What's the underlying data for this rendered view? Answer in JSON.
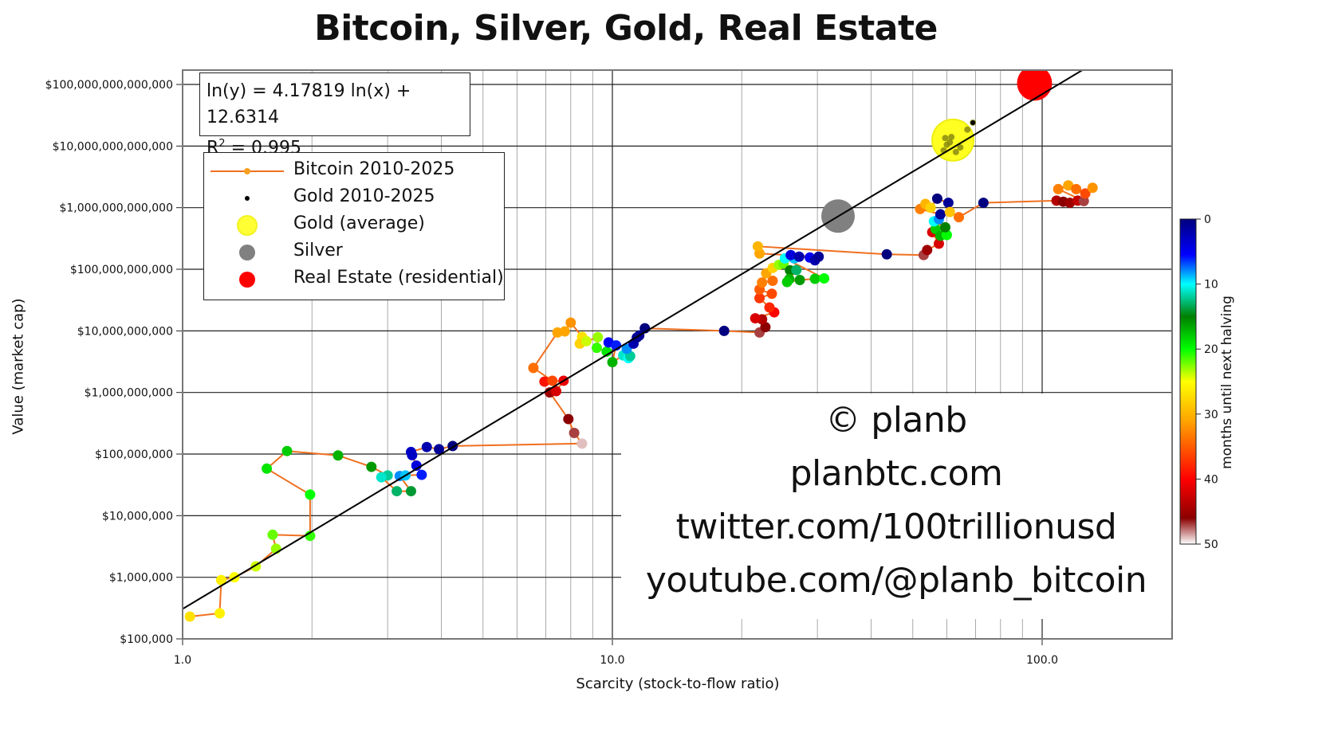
{
  "title": "Bitcoin, Silver, Gold, Real Estate",
  "equation": {
    "line1": "ln(y) = 4.17819 ln(x) + 12.6314",
    "r2_prefix": "R",
    "r2_sup": "2",
    "r2_value": " = 0.995"
  },
  "legend": {
    "items": [
      {
        "label": "Bitcoin 2010-2025",
        "symbol": "orange-line-dot",
        "color": "#f08a24"
      },
      {
        "label": "Gold 2010-2025",
        "symbol": "small-black-dot",
        "color": "#000000"
      },
      {
        "label": "Gold (average)",
        "symbol": "yellow-circle",
        "color": "#ffff33"
      },
      {
        "label": "Silver",
        "symbol": "gray-circle",
        "color": "#808080"
      },
      {
        "label": "Real Estate (residential)",
        "symbol": "red-circle",
        "color": "#ff0000"
      }
    ]
  },
  "watermark": {
    "lines": [
      "© planb",
      "planbtc.com",
      "twitter.com/100trillionusd",
      "youtube.com/@planb_bitcoin"
    ]
  },
  "axes": {
    "xlabel": "Scarcity (stock-to-flow ratio)",
    "ylabel": "Value (market cap)",
    "xticks": [
      "1.0",
      "10.0",
      "100.0"
    ],
    "yticks": [
      "$100,000",
      "$1,000,000",
      "$10,000,000",
      "$100,000,000",
      "$1,000,000,000",
      "$10,000,000,000",
      "$100,000,000,000",
      "$1,000,000,000,000",
      "$10,000,000,000,000",
      "$100,000,000,000,000"
    ]
  },
  "colorbar": {
    "label": "months until next halving",
    "ticks": [
      "0",
      "10",
      "20",
      "30",
      "40",
      "50"
    ],
    "min": 0,
    "max": 50
  },
  "colors": {
    "bitcoin_line": "#f07020",
    "regression_line": "#000000",
    "gold_avg": "#ffff22",
    "silver": "#808080",
    "real_estate": "#ff0000",
    "grid_major": "#222222",
    "grid_minor": "#999999"
  },
  "chart_data": {
    "type": "scatter",
    "title": "Bitcoin, Silver, Gold, Real Estate",
    "xlabel": "Scarcity (stock-to-flow ratio)",
    "ylabel": "Value (market cap)",
    "xscale": "log",
    "yscale": "log",
    "xlim": [
      1.0,
      200
    ],
    "ylim": [
      100000,
      130000000000000
    ],
    "grid": true,
    "legend_position": "upper left",
    "regression": {
      "slope": 4.17819,
      "intercept": 12.6314,
      "r2": 0.995,
      "form": "ln(y) = a ln(x) + b"
    },
    "series": [
      {
        "name": "Bitcoin 2010-2025",
        "type": "line+scatter",
        "color_by": "months until next halving",
        "points": [
          {
            "x": 1.04,
            "y": 230000,
            "m": 27
          },
          {
            "x": 1.22,
            "y": 260000,
            "m": 26
          },
          {
            "x": 1.23,
            "y": 900000,
            "m": 26
          },
          {
            "x": 1.32,
            "y": 1000000,
            "m": 25
          },
          {
            "x": 1.48,
            "y": 1500000,
            "m": 24
          },
          {
            "x": 1.65,
            "y": 2900000,
            "m": 23
          },
          {
            "x": 1.62,
            "y": 4900000,
            "m": 22
          },
          {
            "x": 1.98,
            "y": 4700000,
            "m": 21
          },
          {
            "x": 1.98,
            "y": 22000000,
            "m": 20
          },
          {
            "x": 1.57,
            "y": 58000000,
            "m": 19
          },
          {
            "x": 1.75,
            "y": 112000000,
            "m": 18
          },
          {
            "x": 2.3,
            "y": 95000000,
            "m": 17
          },
          {
            "x": 2.75,
            "y": 62000000,
            "m": 16
          },
          {
            "x": 3.0,
            "y": 45000000,
            "m": 12
          },
          {
            "x": 2.9,
            "y": 42000000,
            "m": 11
          },
          {
            "x": 3.15,
            "y": 25000000,
            "m": 13
          },
          {
            "x": 3.4,
            "y": 25000000,
            "m": 14
          },
          {
            "x": 3.2,
            "y": 44000000,
            "m": 8
          },
          {
            "x": 3.3,
            "y": 45000000,
            "m": 9
          },
          {
            "x": 3.6,
            "y": 46000000,
            "m": 6
          },
          {
            "x": 3.5,
            "y": 65000000,
            "m": 4
          },
          {
            "x": 3.42,
            "y": 96000000,
            "m": 3
          },
          {
            "x": 3.4,
            "y": 108000000,
            "m": 3
          },
          {
            "x": 3.7,
            "y": 130000000,
            "m": 2
          },
          {
            "x": 3.95,
            "y": 120000000,
            "m": 1
          },
          {
            "x": 4.25,
            "y": 135000000,
            "m": 0
          },
          {
            "x": 8.5,
            "y": 148000000,
            "m": 49
          },
          {
            "x": 8.15,
            "y": 220000000,
            "m": 47
          },
          {
            "x": 7.9,
            "y": 370000000,
            "m": 46
          },
          {
            "x": 7.15,
            "y": 1000000000,
            "m": 45
          },
          {
            "x": 7.4,
            "y": 1050000000,
            "m": 42
          },
          {
            "x": 7.7,
            "y": 1550000000,
            "m": 41
          },
          {
            "x": 6.95,
            "y": 1500000000,
            "m": 39
          },
          {
            "x": 7.25,
            "y": 1550000000,
            "m": 36
          },
          {
            "x": 6.55,
            "y": 2500000000,
            "m": 34
          },
          {
            "x": 7.45,
            "y": 9400000000,
            "m": 31
          },
          {
            "x": 7.75,
            "y": 9800000000,
            "m": 31
          },
          {
            "x": 8.0,
            "y": 13600000000,
            "m": 32
          },
          {
            "x": 8.5,
            "y": 8000000000,
            "m": 27
          },
          {
            "x": 8.4,
            "y": 6200000000,
            "m": 28
          },
          {
            "x": 8.7,
            "y": 6800000000,
            "m": 24
          },
          {
            "x": 9.25,
            "y": 7900000000,
            "m": 23
          },
          {
            "x": 9.2,
            "y": 5300000000,
            "m": 21
          },
          {
            "x": 9.7,
            "y": 4600000000,
            "m": 19
          },
          {
            "x": 9.8,
            "y": 6500000000,
            "m": 5
          },
          {
            "x": 10.2,
            "y": 5800000000,
            "m": 6
          },
          {
            "x": 10.0,
            "y": 3100000000,
            "m": 17
          },
          {
            "x": 10.6,
            "y": 4000000000,
            "m": 11
          },
          {
            "x": 10.9,
            "y": 3600000000,
            "m": 10
          },
          {
            "x": 11.0,
            "y": 3900000000,
            "m": 12
          },
          {
            "x": 10.8,
            "y": 5100000000,
            "m": 8
          },
          {
            "x": 11.2,
            "y": 6200000000,
            "m": 2
          },
          {
            "x": 11.4,
            "y": 7800000000,
            "m": 1
          },
          {
            "x": 11.55,
            "y": 8400000000,
            "m": 1
          },
          {
            "x": 11.9,
            "y": 11000000000,
            "m": 0
          },
          {
            "x": 18.2,
            "y": 10000000000,
            "m": 0
          },
          {
            "x": 22.0,
            "y": 9400000000,
            "m": 47
          },
          {
            "x": 22.7,
            "y": 11500000000,
            "m": 46
          },
          {
            "x": 22.3,
            "y": 15400000000,
            "m": 44
          },
          {
            "x": 21.5,
            "y": 16000000000,
            "m": 42
          },
          {
            "x": 23.8,
            "y": 20000000000,
            "m": 40
          },
          {
            "x": 23.2,
            "y": 24000000000,
            "m": 38
          },
          {
            "x": 22.0,
            "y": 34000000000,
            "m": 37
          },
          {
            "x": 23.5,
            "y": 40000000000,
            "m": 36
          },
          {
            "x": 22.0,
            "y": 47000000000,
            "m": 35
          },
          {
            "x": 22.3,
            "y": 61000000000,
            "m": 33
          },
          {
            "x": 23.6,
            "y": 65000000000,
            "m": 34
          },
          {
            "x": 22.8,
            "y": 86000000000,
            "m": 31
          },
          {
            "x": 23.6,
            "y": 105000000000,
            "m": 28
          },
          {
            "x": 24.4,
            "y": 118000000000,
            "m": 23
          },
          {
            "x": 25.0,
            "y": 123000000000,
            "m": 22
          },
          {
            "x": 25.9,
            "y": 96000000000,
            "m": 15
          },
          {
            "x": 26.8,
            "y": 97000000000,
            "m": 13
          },
          {
            "x": 25.8,
            "y": 69000000000,
            "m": 17
          },
          {
            "x": 25.5,
            "y": 62000000000,
            "m": 18
          },
          {
            "x": 27.3,
            "y": 67000000000,
            "m": 16
          },
          {
            "x": 29.6,
            "y": 70000000000,
            "m": 18
          },
          {
            "x": 31.1,
            "y": 71000000000,
            "m": 20
          },
          {
            "x": 25.2,
            "y": 150000000000,
            "m": 10
          },
          {
            "x": 26.5,
            "y": 150000000000,
            "m": 9
          },
          {
            "x": 26.0,
            "y": 170000000000,
            "m": 4
          },
          {
            "x": 27.2,
            "y": 160000000000,
            "m": 2
          },
          {
            "x": 28.8,
            "y": 155000000000,
            "m": 5
          },
          {
            "x": 29.6,
            "y": 140000000000,
            "m": 2
          },
          {
            "x": 30.2,
            "y": 160000000000,
            "m": 1
          },
          {
            "x": 22.0,
            "y": 180000000000,
            "m": 31
          },
          {
            "x": 21.8,
            "y": 235000000000,
            "m": 30
          },
          {
            "x": 43.5,
            "y": 175000000000,
            "m": 0
          },
          {
            "x": 53.0,
            "y": 170000000000,
            "m": 47
          },
          {
            "x": 54.0,
            "y": 205000000000,
            "m": 45
          },
          {
            "x": 57.5,
            "y": 260000000000,
            "m": 42
          },
          {
            "x": 55.5,
            "y": 400000000000,
            "m": 42
          },
          {
            "x": 56.5,
            "y": 450000000000,
            "m": 18
          },
          {
            "x": 58.0,
            "y": 350000000000,
            "m": 17
          },
          {
            "x": 60.0,
            "y": 360000000000,
            "m": 20
          },
          {
            "x": 59.5,
            "y": 480000000000,
            "m": 15
          },
          {
            "x": 56.0,
            "y": 600000000000,
            "m": 10
          },
          {
            "x": 57.5,
            "y": 650000000000,
            "m": 8
          },
          {
            "x": 58.0,
            "y": 780000000000,
            "m": 1
          },
          {
            "x": 52.0,
            "y": 950000000000,
            "m": 33
          },
          {
            "x": 53.5,
            "y": 1150000000000,
            "m": 30
          },
          {
            "x": 55.0,
            "y": 1000000000000,
            "m": 28
          },
          {
            "x": 57.0,
            "y": 1400000000000,
            "m": 0
          },
          {
            "x": 60.5,
            "y": 1200000000000,
            "m": 1
          },
          {
            "x": 61.0,
            "y": 850000000000,
            "m": 29
          },
          {
            "x": 64.0,
            "y": 700000000000,
            "m": 34
          },
          {
            "x": 73.0,
            "y": 1200000000000,
            "m": 0
          },
          {
            "x": 108.0,
            "y": 1300000000000,
            "m": 44
          },
          {
            "x": 112.0,
            "y": 1250000000000,
            "m": 46
          },
          {
            "x": 116.0,
            "y": 1200000000000,
            "m": 45
          },
          {
            "x": 121.0,
            "y": 1300000000000,
            "m": 43
          },
          {
            "x": 125.0,
            "y": 1280000000000,
            "m": 47
          },
          {
            "x": 109.0,
            "y": 2000000000000,
            "m": 33
          },
          {
            "x": 115.0,
            "y": 2300000000000,
            "m": 31
          },
          {
            "x": 120.0,
            "y": 2000000000000,
            "m": 34
          },
          {
            "x": 126.0,
            "y": 1700000000000,
            "m": 36
          },
          {
            "x": 131.0,
            "y": 2100000000000,
            "m": 32
          }
        ]
      },
      {
        "name": "Gold 2010-2025",
        "type": "scatter",
        "color": "#000000",
        "points": [
          {
            "x": 59.0,
            "y": 8500000000000
          },
          {
            "x": 60.0,
            "y": 10500000000000
          },
          {
            "x": 61.0,
            "y": 11500000000000
          },
          {
            "x": 59.5,
            "y": 13500000000000
          },
          {
            "x": 61.5,
            "y": 14000000000000
          },
          {
            "x": 63.0,
            "y": 8000000000000
          },
          {
            "x": 64.5,
            "y": 9500000000000
          },
          {
            "x": 67.0,
            "y": 18500000000000
          },
          {
            "x": 69.0,
            "y": 24000000000000
          }
        ]
      },
      {
        "name": "Gold (average)",
        "type": "bubble",
        "points": [
          {
            "x": 62.0,
            "y": 12500000000000
          }
        ],
        "color": "#ffff22"
      },
      {
        "name": "Silver",
        "type": "bubble",
        "points": [
          {
            "x": 33.5,
            "y": 730000000000
          }
        ],
        "color": "#808080"
      },
      {
        "name": "Real Estate (residential)",
        "type": "bubble",
        "points": [
          {
            "x": 96.0,
            "y": 105000000000000
          }
        ],
        "color": "#ff0000"
      },
      {
        "name": "Regression",
        "type": "line",
        "formula": "y = exp(12.6314) * x^4.17819",
        "color": "#000000"
      }
    ]
  }
}
